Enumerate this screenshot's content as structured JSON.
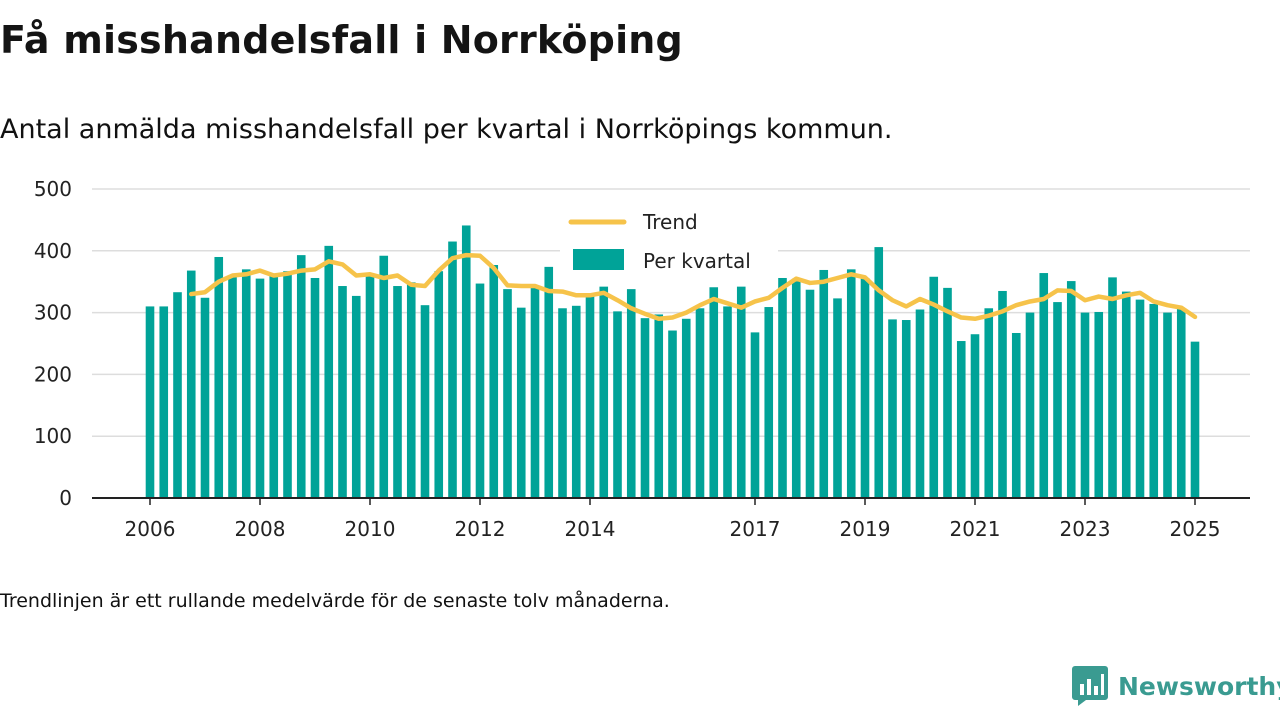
{
  "header": {
    "title": "Få misshandelsfall i Norrköping",
    "subtitle": "Antal anmälda misshandelsfall per kvartal i Norrköpings kommun."
  },
  "footnote": "Trendlinjen är ett rullande medelvärde för de senaste tolv månaderna.",
  "brand": {
    "name": "Newsworthy",
    "color": "#3a9b91"
  },
  "colors": {
    "bars": "#00a398",
    "trend": "#f6c34a",
    "grid": "#dddddd",
    "axis": "#222222"
  },
  "chart_data": {
    "type": "bar",
    "ylim": [
      0,
      500
    ],
    "y_ticks": [
      0,
      100,
      200,
      300,
      400,
      500
    ],
    "x_tick_labels": [
      "2006",
      "2008",
      "2010",
      "2012",
      "2014",
      "2017",
      "2019",
      "2021",
      "2023",
      "2025"
    ],
    "x_tick_positions": [
      2006,
      2008,
      2010,
      2012,
      2014,
      2017,
      2019,
      2021,
      2023,
      2025
    ],
    "grid": true,
    "legend": {
      "placement": "top-center",
      "entries": [
        "Trend",
        "Per kvartal"
      ]
    },
    "x_start": 2006,
    "x_step": 0.25,
    "series": [
      {
        "name": "Per kvartal",
        "type": "bar",
        "values": [
          310,
          310,
          333,
          368,
          324,
          390,
          360,
          370,
          355,
          360,
          367,
          393,
          356,
          408,
          343,
          327,
          362,
          392,
          343,
          349,
          312,
          367,
          415,
          441,
          347,
          377,
          338,
          308,
          340,
          374,
          307,
          311,
          330,
          342,
          302,
          338,
          291,
          297,
          271,
          290,
          307,
          341,
          310,
          342,
          268,
          309,
          356,
          355,
          337,
          369,
          323,
          370,
          356,
          406,
          289,
          288,
          305,
          358,
          340,
          254,
          265,
          307,
          335,
          267,
          300,
          364,
          317,
          351,
          300,
          301,
          357,
          334,
          321,
          314,
          300,
          307,
          253
        ]
      },
      {
        "name": "Trend",
        "type": "line",
        "x": [
          2006.75,
          2007.0,
          2007.25,
          2007.5,
          2007.75,
          2008.0,
          2008.25,
          2008.5,
          2008.75,
          2009.0,
          2009.25,
          2009.5,
          2009.75,
          2010.0,
          2010.25,
          2010.5,
          2010.75,
          2011.0,
          2011.25,
          2011.5,
          2011.75,
          2012.0,
          2012.25,
          2012.5,
          2012.75,
          2013.0,
          2013.25,
          2013.5,
          2013.75,
          2014.0,
          2014.25,
          2014.5,
          2014.75,
          2015.0,
          2015.25,
          2015.5,
          2015.75,
          2016.0,
          2016.25,
          2016.5,
          2016.75,
          2017.0,
          2017.25,
          2017.5,
          2017.75,
          2018.0,
          2018.25,
          2018.5,
          2018.75,
          2019.0,
          2019.25,
          2019.5,
          2019.75,
          2020.0,
          2020.25,
          2020.5,
          2020.75,
          2021.0,
          2021.25,
          2021.5,
          2021.75,
          2022.0,
          2022.25,
          2022.5,
          2022.75,
          2023.0,
          2023.25,
          2023.5,
          2023.75,
          2024.0,
          2024.25,
          2024.5,
          2024.75,
          2025.0
        ],
        "values": [
          330,
          333,
          350,
          360,
          362,
          368,
          360,
          363,
          368,
          370,
          383,
          378,
          360,
          362,
          356,
          360,
          345,
          343,
          368,
          388,
          393,
          392,
          372,
          344,
          343,
          343,
          335,
          334,
          328,
          328,
          332,
          320,
          307,
          298,
          290,
          292,
          300,
          312,
          322,
          315,
          308,
          318,
          324,
          340,
          355,
          348,
          350,
          356,
          362,
          357,
          336,
          320,
          310,
          322,
          313,
          302,
          292,
          290,
          295,
          302,
          312,
          318,
          322,
          336,
          335,
          320,
          326,
          322,
          328,
          332,
          318,
          312,
          308,
          293
        ]
      }
    ]
  }
}
